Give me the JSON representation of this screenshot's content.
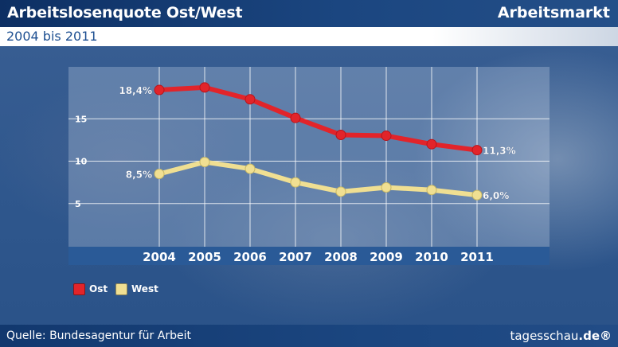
{
  "header": {
    "title": "Arbeitslosenquote Ost/West",
    "category": "Arbeitsmarkt",
    "subtitle": "2004 bis 2011"
  },
  "footer": {
    "source": "Quelle: Bundesagentur für Arbeit",
    "brand_prefix": "tagesschau",
    "brand_suffix": ".de®"
  },
  "colors": {
    "ost": "#e2242a",
    "west": "#f0df92",
    "header_dark": "#0d2f63",
    "axis_bar": "#2a5a97",
    "title_blue": "#1d4f91"
  },
  "chart_data": {
    "type": "line",
    "categories": [
      "2004",
      "2005",
      "2006",
      "2007",
      "2008",
      "2009",
      "2010",
      "2011"
    ],
    "series": [
      {
        "name": "Ost",
        "values": [
          18.4,
          18.7,
          17.3,
          15.1,
          13.1,
          13.0,
          12.0,
          11.3
        ]
      },
      {
        "name": "West",
        "values": [
          8.5,
          9.9,
          9.1,
          7.5,
          6.4,
          6.9,
          6.6,
          6.0
        ]
      }
    ],
    "y_ticks": [
      "5",
      "10",
      "15"
    ],
    "ylim": [
      0,
      20
    ],
    "data_labels": [
      {
        "series": "Ost",
        "index": 0,
        "text": "18,4%"
      },
      {
        "series": "Ost",
        "index": 7,
        "text": "11,3%"
      },
      {
        "series": "West",
        "index": 0,
        "text": "8,5%"
      },
      {
        "series": "West",
        "index": 7,
        "text": "6,0%"
      }
    ],
    "legend_placement": "bottom-left",
    "grid": true
  }
}
